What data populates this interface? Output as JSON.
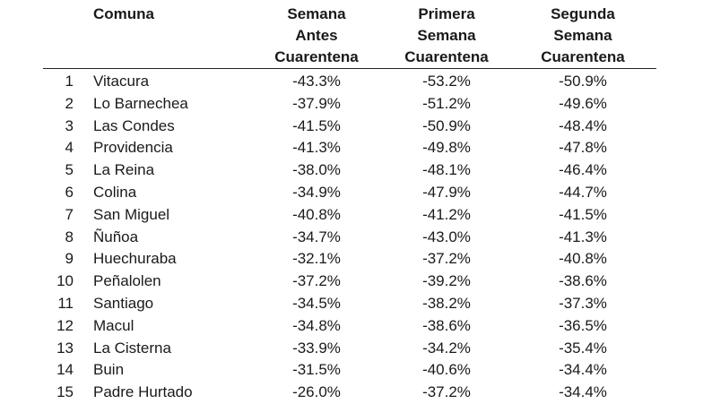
{
  "table": {
    "headers": {
      "index": "",
      "comuna": "Comuna",
      "col_a": [
        "Semana",
        "Antes",
        "Cuarentena"
      ],
      "col_b": [
        "Primera",
        "Semana",
        "Cuarentena"
      ],
      "col_c": [
        "Segunda",
        "Semana",
        "Cuarentena"
      ]
    },
    "rows": [
      {
        "index": "1",
        "comuna": "Vitacura",
        "antes": "-43.3%",
        "primera": "-53.2%",
        "segunda": "-50.9%"
      },
      {
        "index": "2",
        "comuna": "Lo Barnechea",
        "antes": "-37.9%",
        "primera": "-51.2%",
        "segunda": "-49.6%"
      },
      {
        "index": "3",
        "comuna": "Las Condes",
        "antes": "-41.5%",
        "primera": "-50.9%",
        "segunda": "-48.4%"
      },
      {
        "index": "4",
        "comuna": "Providencia",
        "antes": "-41.3%",
        "primera": "-49.8%",
        "segunda": "-47.8%"
      },
      {
        "index": "5",
        "comuna": "La Reina",
        "antes": "-38.0%",
        "primera": "-48.1%",
        "segunda": "-46.4%"
      },
      {
        "index": "6",
        "comuna": "Colina",
        "antes": "-34.9%",
        "primera": "-47.9%",
        "segunda": "-44.7%"
      },
      {
        "index": "7",
        "comuna": "San Miguel",
        "antes": "-40.8%",
        "primera": "-41.2%",
        "segunda": "-41.5%"
      },
      {
        "index": "8",
        "comuna": "Ñuñoa",
        "antes": "-34.7%",
        "primera": "-43.0%",
        "segunda": "-41.3%"
      },
      {
        "index": "9",
        "comuna": "Huechuraba",
        "antes": "-32.1%",
        "primera": "-37.2%",
        "segunda": "-40.8%"
      },
      {
        "index": "10",
        "comuna": "Peñalolen",
        "antes": "-37.2%",
        "primera": "-39.2%",
        "segunda": "-38.6%"
      },
      {
        "index": "11",
        "comuna": "Santiago",
        "antes": "-34.5%",
        "primera": "-38.2%",
        "segunda": "-37.3%"
      },
      {
        "index": "12",
        "comuna": "Macul",
        "antes": "-34.8%",
        "primera": "-38.6%",
        "segunda": "-36.5%"
      },
      {
        "index": "13",
        "comuna": "La Cisterna",
        "antes": "-33.9%",
        "primera": "-34.2%",
        "segunda": "-35.4%"
      },
      {
        "index": "14",
        "comuna": "Buin",
        "antes": "-31.5%",
        "primera": "-40.6%",
        "segunda": "-34.4%"
      },
      {
        "index": "15",
        "comuna": "Padre Hurtado",
        "antes": "-26.0%",
        "primera": "-37.2%",
        "segunda": "-34.4%"
      }
    ]
  }
}
